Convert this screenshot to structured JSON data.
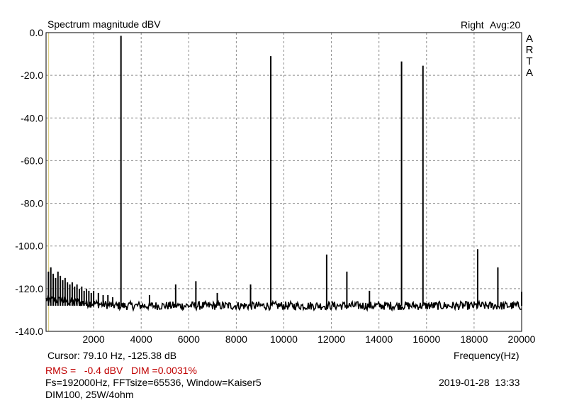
{
  "header": {
    "title": "Spectrum magnitude dBV",
    "channel": "Right",
    "avg": "Avg:20",
    "logo_letters": [
      "A",
      "R",
      "T",
      "A"
    ]
  },
  "footer": {
    "cursor": "Cursor: 79.10 Hz, -125.38 dB",
    "xaxis_label": "Frequency(Hz)",
    "rms": "RMS =   -0.4 dBV   DIM =0.0031%",
    "params": "Fs=192000Hz, FFTsize=65536, Window=Kaiser5",
    "datetime": "2019-01-28  13:33",
    "note": "DIM100, 25W/4ohm"
  },
  "colors": {
    "trace": "#000000",
    "grid": "#8c8c8c",
    "rms_text": "#c00000",
    "cursor_line": "#d8c870"
  },
  "chart_data": {
    "type": "line",
    "title": "Spectrum magnitude dBV",
    "xlabel": "Frequency(Hz)",
    "ylabel": "",
    "xlim": [
      0,
      20000
    ],
    "ylim": [
      -140,
      0
    ],
    "x_ticks": [
      "2000",
      "4000",
      "6000",
      "8000",
      "10000",
      "12000",
      "14000",
      "16000",
      "18000",
      "20000"
    ],
    "y_ticks": [
      "0.0",
      "-20.0",
      "-40.0",
      "-60.0",
      "-80.0",
      "-100.0",
      "-120.0",
      "-140.0"
    ],
    "grid": true,
    "noise_floor": -128,
    "peaks": [
      {
        "x": 3150,
        "y": -1.5
      },
      {
        "x": 9450,
        "y": -11
      },
      {
        "x": 14950,
        "y": -13.5
      },
      {
        "x": 15850,
        "y": -15.5
      },
      {
        "x": 18150,
        "y": -101.5
      },
      {
        "x": 11800,
        "y": -104
      },
      {
        "x": 19000,
        "y": -110
      },
      {
        "x": 12650,
        "y": -112
      },
      {
        "x": 6300,
        "y": -116.5
      },
      {
        "x": 5450,
        "y": -118
      },
      {
        "x": 8600,
        "y": -118
      },
      {
        "x": 7200,
        "y": -122
      },
      {
        "x": 13600,
        "y": -121
      },
      {
        "x": 4350,
        "y": -123
      },
      {
        "x": 20000,
        "y": -121.5
      }
    ],
    "low_freq_spurs": [
      {
        "x": 100,
        "y": -112
      },
      {
        "x": 200,
        "y": -110
      },
      {
        "x": 300,
        "y": -113
      },
      {
        "x": 400,
        "y": -115
      },
      {
        "x": 500,
        "y": -112
      },
      {
        "x": 600,
        "y": -114
      },
      {
        "x": 700,
        "y": -116
      },
      {
        "x": 800,
        "y": -115
      },
      {
        "x": 900,
        "y": -117
      },
      {
        "x": 1000,
        "y": -118
      },
      {
        "x": 1100,
        "y": -117
      },
      {
        "x": 1200,
        "y": -119
      },
      {
        "x": 1300,
        "y": -118
      },
      {
        "x": 1400,
        "y": -120
      },
      {
        "x": 1500,
        "y": -119
      },
      {
        "x": 1600,
        "y": -121
      },
      {
        "x": 1700,
        "y": -120
      },
      {
        "x": 1800,
        "y": -121
      },
      {
        "x": 1900,
        "y": -122
      },
      {
        "x": 2000,
        "y": -121
      },
      {
        "x": 2200,
        "y": -122
      },
      {
        "x": 2400,
        "y": -123
      },
      {
        "x": 2600,
        "y": -123
      },
      {
        "x": 2800,
        "y": -124
      }
    ],
    "cursor": {
      "x": 79.1,
      "y": -125.38
    }
  }
}
